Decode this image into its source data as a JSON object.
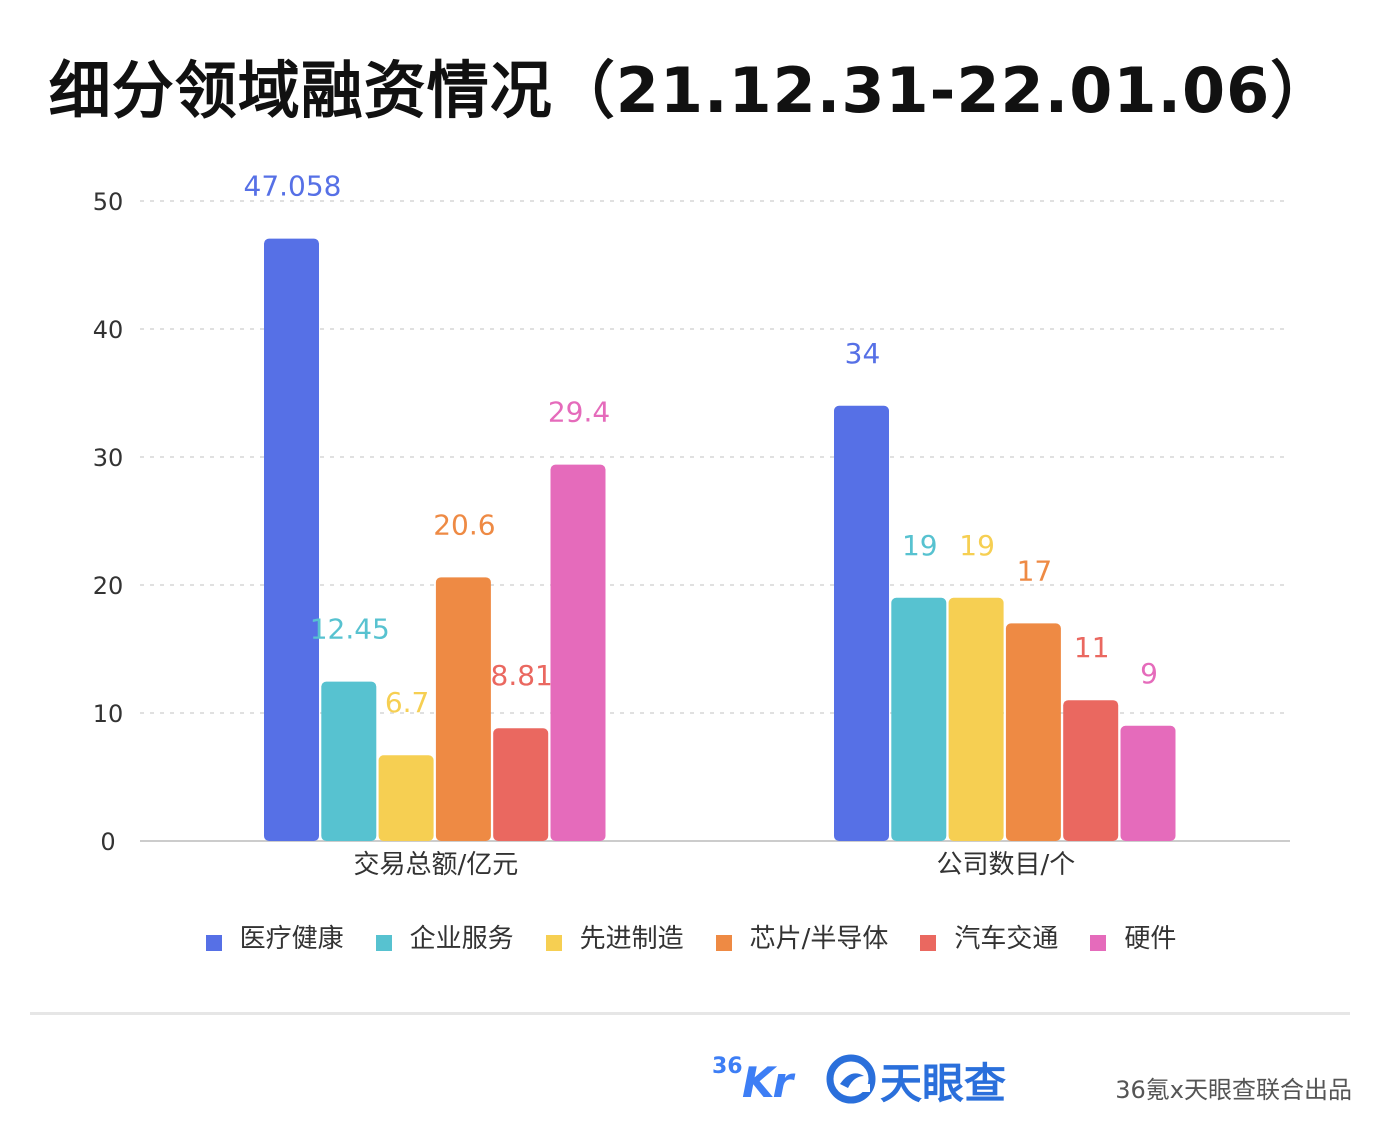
{
  "title": "细分领域融资情况（21.12.31-22.01.06）",
  "chart_data": {
    "type": "bar",
    "title": "细分领域融资情况（21.12.31-22.01.06）",
    "categories": [
      "交易总额/亿元",
      "公司数目/个"
    ],
    "series": [
      {
        "name": "医疗健康",
        "color": "#5670e6",
        "values": [
          47.058,
          34
        ],
        "labels": [
          "47.058",
          "34"
        ]
      },
      {
        "name": "企业服务",
        "color": "#57c2d0",
        "values": [
          12.45,
          19
        ],
        "labels": [
          "12.45",
          "19"
        ]
      },
      {
        "name": "先进制造",
        "color": "#f6cf52",
        "values": [
          6.7,
          19
        ],
        "labels": [
          "6.7",
          "19"
        ]
      },
      {
        "name": "芯片/半导体",
        "color": "#ee8a44",
        "values": [
          20.6,
          17
        ],
        "labels": [
          "20.6",
          "17"
        ]
      },
      {
        "name": "汽车交通",
        "color": "#ea6860",
        "values": [
          8.81,
          11
        ],
        "labels": [
          "8.81",
          "11"
        ]
      },
      {
        "name": "硬件",
        "color": "#e56bbb",
        "values": [
          29.4,
          9
        ],
        "labels": [
          "29.4",
          "9"
        ]
      }
    ],
    "ylim": [
      0,
      50
    ],
    "yticks": [
      0,
      10,
      20,
      30,
      40,
      50
    ],
    "grid": true,
    "legend_position": "bottom"
  },
  "footer": {
    "logo36_sup": "36",
    "logo36_main": "Kr",
    "tianyancha": "天眼查",
    "credit": "36氪x天眼查联合出品"
  },
  "colors": {
    "grid": "#e0e0e0",
    "axis": "#cccccc",
    "tianyancha_blue": "#2a6fdb",
    "kr_blue": "#3d7ef5"
  }
}
